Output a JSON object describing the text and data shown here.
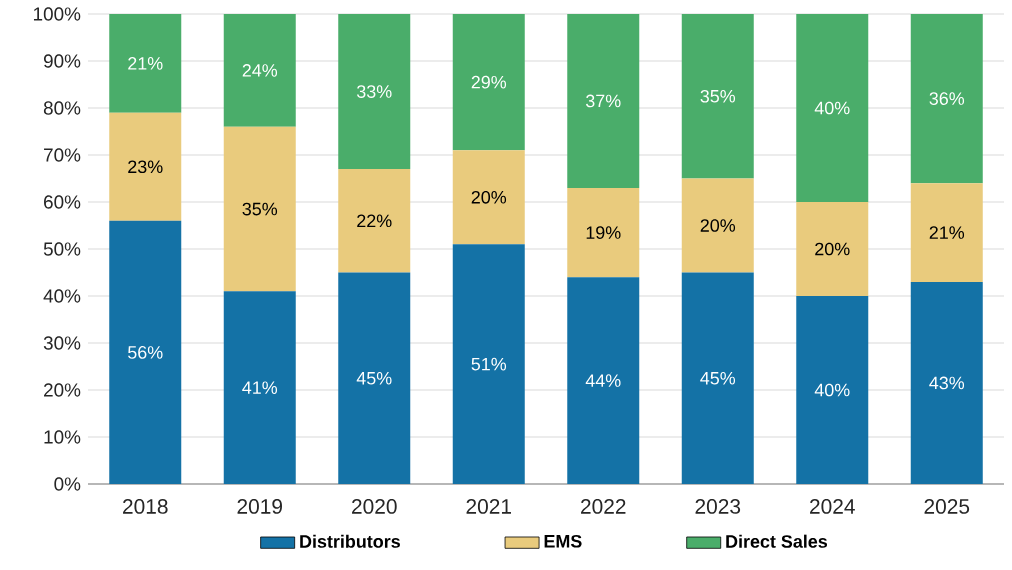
{
  "chart_data": {
    "type": "bar",
    "stacked": true,
    "categories": [
      "2018",
      "2019",
      "2020",
      "2021",
      "2022",
      "2023",
      "2024",
      "2025"
    ],
    "series": [
      {
        "name": "Distributors",
        "color": "#1472a6",
        "values": [
          56,
          41,
          45,
          51,
          44,
          45,
          40,
          43
        ],
        "value_labels": [
          "56%",
          "41%",
          "45%",
          "51%",
          "44%",
          "45%",
          "40%",
          "43%"
        ]
      },
      {
        "name": "EMS",
        "color": "#e9cb7d",
        "values": [
          23,
          35,
          22,
          20,
          19,
          20,
          20,
          21
        ],
        "value_labels": [
          "23%",
          "35%",
          "22%",
          "20%",
          "19%",
          "20%",
          "20%",
          "21%"
        ]
      },
      {
        "name": "Direct Sales",
        "color": "#4aad6a",
        "values": [
          21,
          24,
          33,
          29,
          37,
          35,
          40,
          36
        ],
        "value_labels": [
          "21%",
          "24%",
          "33%",
          "29%",
          "37%",
          "35%",
          "40%",
          "36%"
        ]
      }
    ],
    "ylim": [
      0,
      100
    ],
    "yticks": [
      {
        "value": 0,
        "label": "0%"
      },
      {
        "value": 10,
        "label": "10%"
      },
      {
        "value": 20,
        "label": "20%"
      },
      {
        "value": 30,
        "label": "30%"
      },
      {
        "value": 40,
        "label": "40%"
      },
      {
        "value": 50,
        "label": "50%"
      },
      {
        "value": 60,
        "label": "60%"
      },
      {
        "value": 70,
        "label": "70%"
      },
      {
        "value": 80,
        "label": "80%"
      },
      {
        "value": 90,
        "label": "90%"
      },
      {
        "value": 100,
        "label": "100%"
      }
    ],
    "grid": "y",
    "legend": "bottom"
  }
}
